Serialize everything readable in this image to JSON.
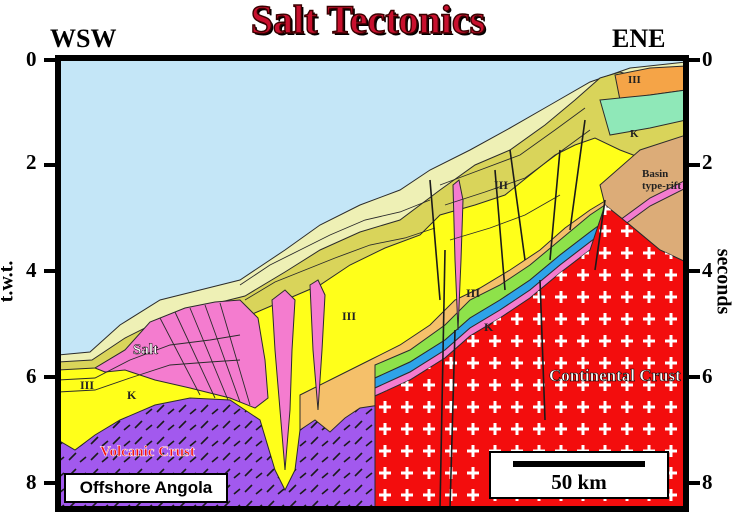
{
  "title": "Salt Tectonics",
  "direction_left": "WSW",
  "direction_right": "ENE",
  "left_axis_label": "t.w.t.",
  "right_axis_label": "seconds",
  "left_ticks": [
    "0",
    "2",
    "4",
    "6",
    "8"
  ],
  "right_ticks": [
    "0",
    "2",
    "4",
    "6",
    "8"
  ],
  "labels": {
    "salt": "Salt",
    "k_left": "K",
    "iii_left": "III",
    "iii_mid": "III",
    "iii_upper": "III",
    "iii_lower": "III",
    "k_mid": "K",
    "iii_top_right": "III",
    "k_top_right": "K",
    "basin_line1": "Basin",
    "basin_line2": "type-rift",
    "volcanic_crust": "Volcanic Crust",
    "continental_crust": "Continental Crust"
  },
  "location_label": "Offshore Angola",
  "scale_label": "50 km",
  "colors": {
    "sea": "#c4e6f7",
    "salt": "#f47ccf",
    "yellow": "#ffff1a",
    "olive": "#d9d45a",
    "pale": "#eef0b5",
    "orange": "#f5c06a",
    "green": "#8ee24a",
    "blue": "#2ea3e8",
    "volcanic": "#a259ee",
    "continental": "#f30d0d",
    "rift": "#dcac78",
    "title_red": "#c8102e"
  }
}
